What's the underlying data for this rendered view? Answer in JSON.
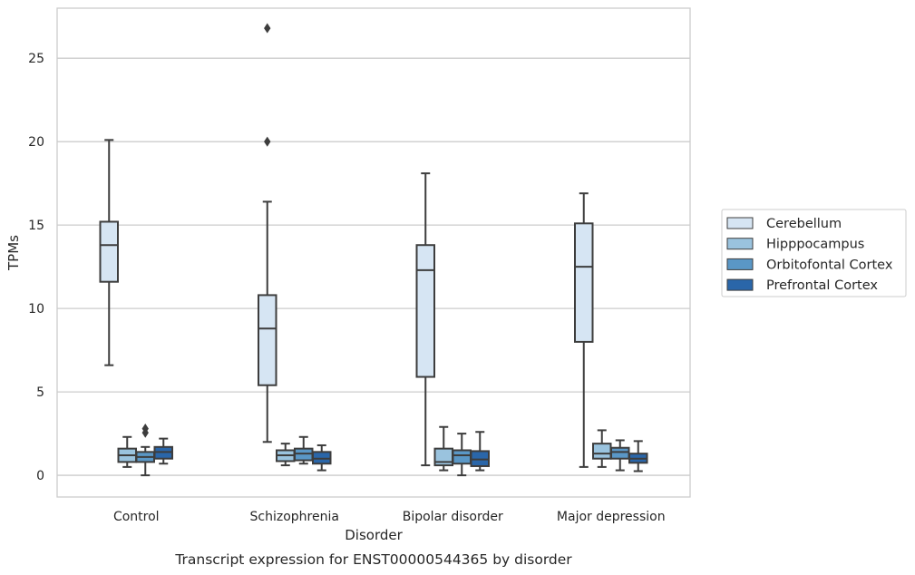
{
  "chart_data": {
    "type": "box",
    "title": "",
    "caption": "Transcript expression for ENST00000544365 by disorder",
    "xlabel": "Disorder",
    "ylabel": "TPMs",
    "ylim": [
      -1.3,
      28.0
    ],
    "yticks": [
      0,
      5,
      10,
      15,
      20,
      25
    ],
    "grid": true,
    "legend_position": "right",
    "categories": [
      "Control",
      "Schizophrenia",
      "Bipolar disorder",
      "Major depression"
    ],
    "series": [
      {
        "name": "Cerebellum",
        "color": "#d6e5f3",
        "boxes": [
          {
            "whisker_low": 6.6,
            "q1": 11.6,
            "median": 13.8,
            "q3": 15.2,
            "whisker_high": 20.1,
            "outliers": []
          },
          {
            "whisker_low": 2.0,
            "q1": 5.4,
            "median": 8.8,
            "q3": 10.8,
            "whisker_high": 16.4,
            "outliers": [
              20.0,
              26.8
            ]
          },
          {
            "whisker_low": 0.6,
            "q1": 5.9,
            "median": 12.3,
            "q3": 13.8,
            "whisker_high": 18.1,
            "outliers": []
          },
          {
            "whisker_low": 0.5,
            "q1": 8.0,
            "median": 12.5,
            "q3": 15.1,
            "whisker_high": 16.9,
            "outliers": []
          }
        ]
      },
      {
        "name": "Hipppocampus",
        "color": "#9ac3de",
        "boxes": [
          {
            "whisker_low": 0.5,
            "q1": 0.8,
            "median": 1.2,
            "q3": 1.6,
            "whisker_high": 2.3,
            "outliers": []
          },
          {
            "whisker_low": 0.6,
            "q1": 0.85,
            "median": 1.2,
            "q3": 1.5,
            "whisker_high": 1.9,
            "outliers": []
          },
          {
            "whisker_low": 0.3,
            "q1": 0.6,
            "median": 0.8,
            "q3": 1.6,
            "whisker_high": 2.9,
            "outliers": []
          },
          {
            "whisker_low": 0.5,
            "q1": 1.0,
            "median": 1.3,
            "q3": 1.9,
            "whisker_high": 2.7,
            "outliers": []
          }
        ]
      },
      {
        "name": "Orbitofontal Cortex",
        "color": "#5a97c6",
        "boxes": [
          {
            "whisker_low": 0.0,
            "q1": 0.8,
            "median": 1.1,
            "q3": 1.4,
            "whisker_high": 1.7,
            "outliers": [
              2.55,
              2.8
            ]
          },
          {
            "whisker_low": 0.7,
            "q1": 0.9,
            "median": 1.3,
            "q3": 1.6,
            "whisker_high": 2.3,
            "outliers": []
          },
          {
            "whisker_low": 0.0,
            "q1": 0.7,
            "median": 1.2,
            "q3": 1.5,
            "whisker_high": 2.5,
            "outliers": []
          },
          {
            "whisker_low": 0.3,
            "q1": 1.0,
            "median": 1.4,
            "q3": 1.65,
            "whisker_high": 2.1,
            "outliers": []
          }
        ]
      },
      {
        "name": "Prefrontal Cortex",
        "color": "#2a66a9",
        "boxes": [
          {
            "whisker_low": 0.7,
            "q1": 1.0,
            "median": 1.4,
            "q3": 1.7,
            "whisker_high": 2.2,
            "outliers": []
          },
          {
            "whisker_low": 0.3,
            "q1": 0.7,
            "median": 1.0,
            "q3": 1.4,
            "whisker_high": 1.8,
            "outliers": []
          },
          {
            "whisker_low": 0.3,
            "q1": 0.55,
            "median": 0.95,
            "q3": 1.45,
            "whisker_high": 2.6,
            "outliers": []
          },
          {
            "whisker_low": 0.25,
            "q1": 0.75,
            "median": 1.0,
            "q3": 1.3,
            "whisker_high": 2.05,
            "outliers": []
          }
        ]
      }
    ]
  }
}
